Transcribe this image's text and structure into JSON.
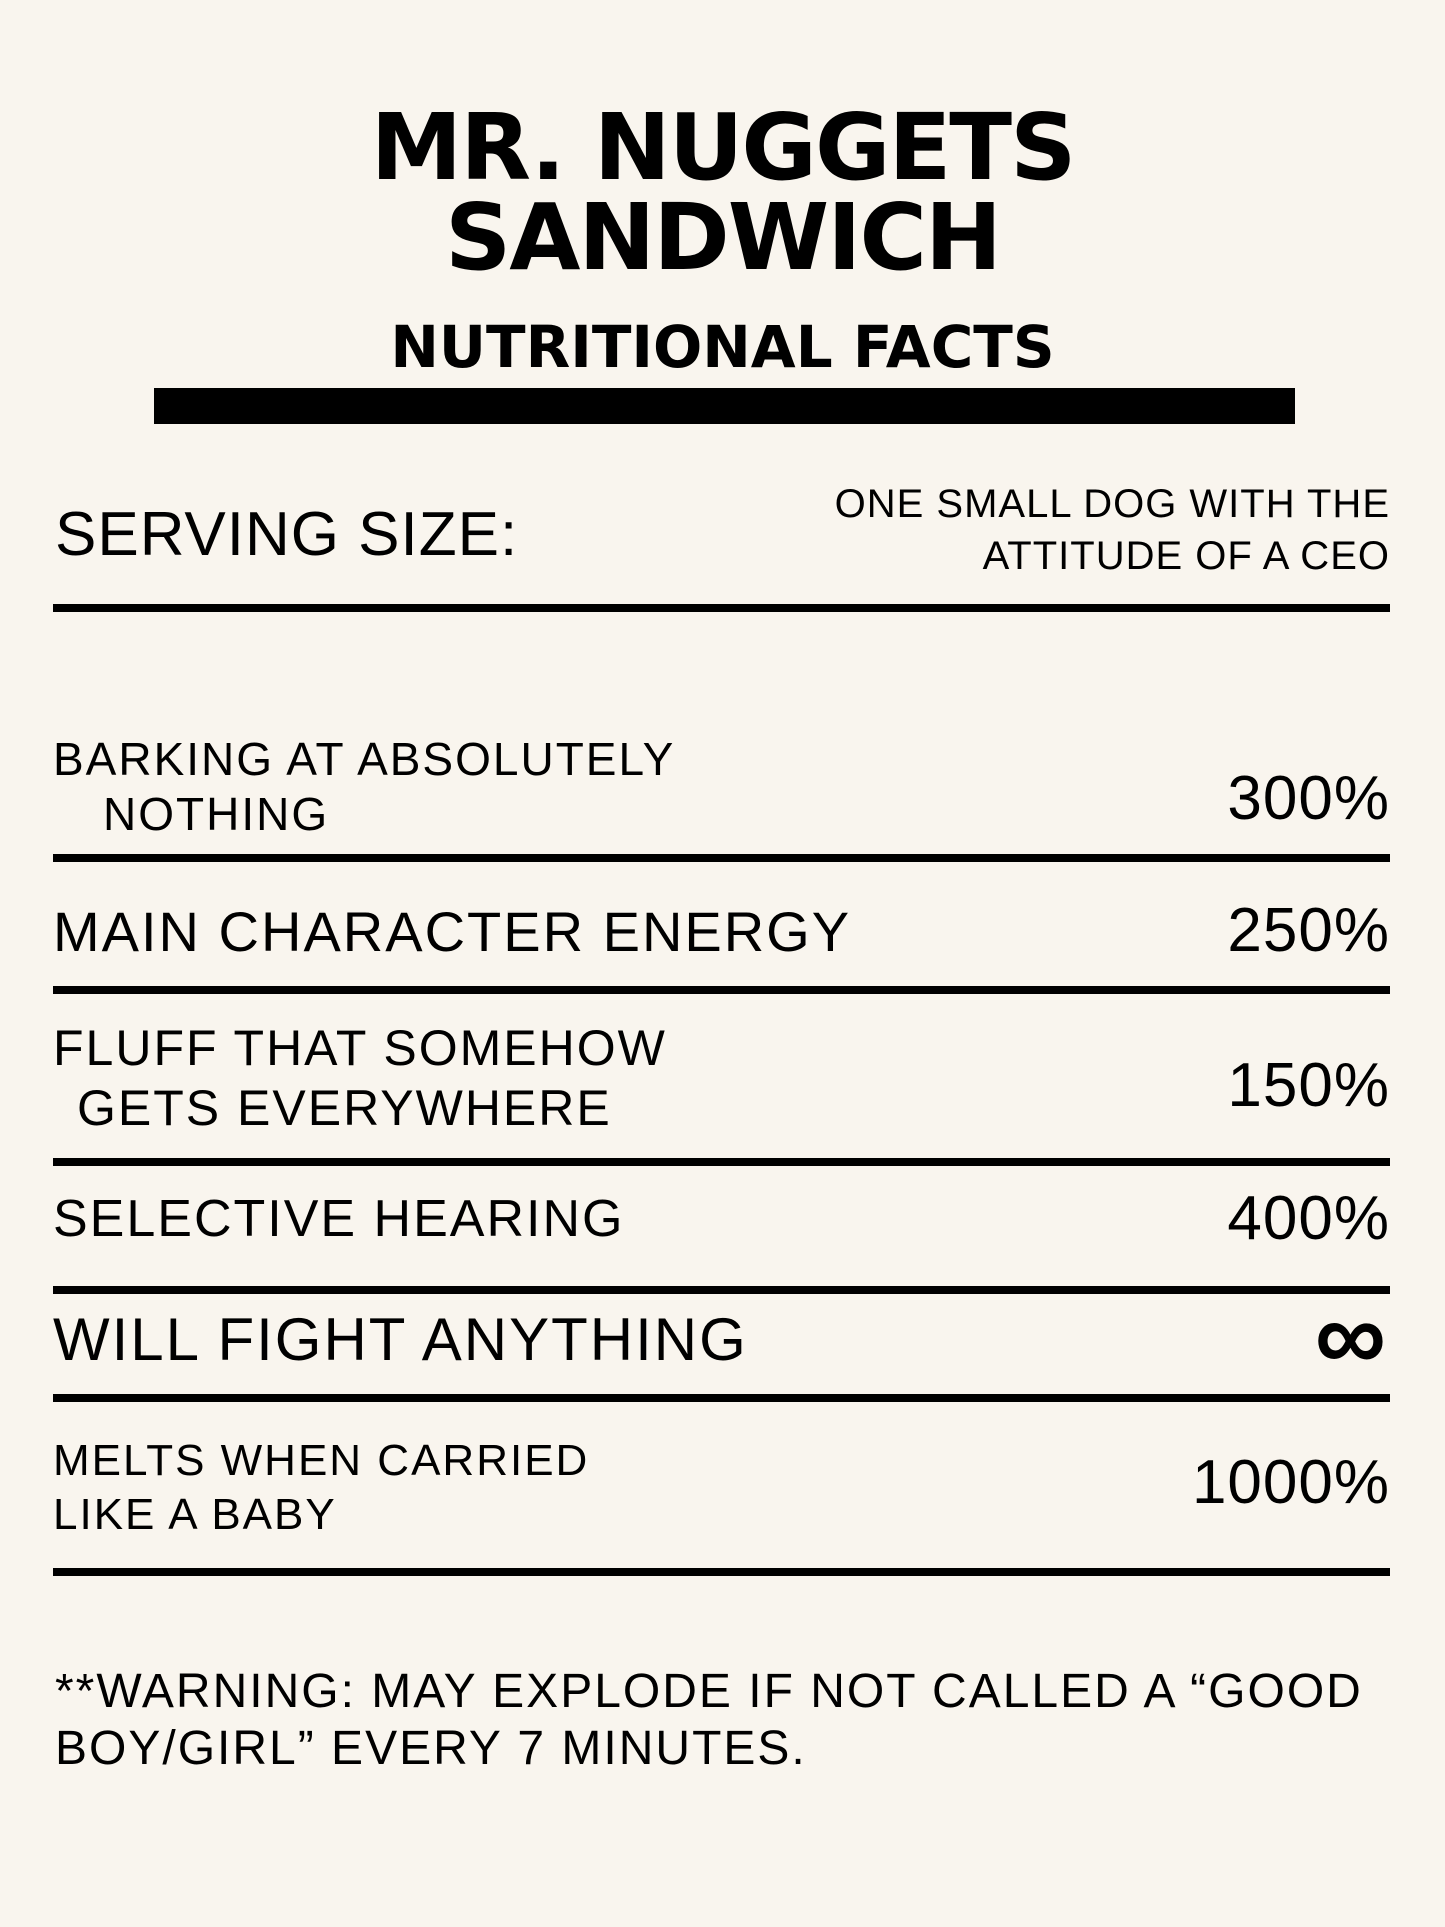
{
  "title": {
    "line1": "MR. NUGGETS",
    "line2": "SANDWICH",
    "subtitle": "NUTRITIONAL FACTS"
  },
  "serving": {
    "label": "SERVING SIZE:",
    "value": "ONE SMALL DOG WITH THE ATTITUDE OF A CEO"
  },
  "rows": [
    {
      "label_line1": "BARKING AT ABSOLUTELY",
      "label_line2": "NOTHING",
      "value": "300%"
    },
    {
      "label_line1": "MAIN CHARACTER ENERGY",
      "value": "250%"
    },
    {
      "label_line1": "FLUFF THAT SOMEHOW",
      "label_line2": "GETS EVERYWHERE",
      "value": "150%"
    },
    {
      "label_line1": "SELECTIVE HEARING",
      "value": "400%"
    },
    {
      "label_line1": "WILL FIGHT ANYTHING",
      "value": "∞"
    },
    {
      "label_line1": "MELTS WHEN CARRIED",
      "label_line2": "LIKE A BABY",
      "value": "1000%"
    }
  ],
  "warning": "**WARNING: MAY EXPLODE IF NOT CALLED A “GOOD BOY/GIRL” EVERY 7 MINUTES."
}
